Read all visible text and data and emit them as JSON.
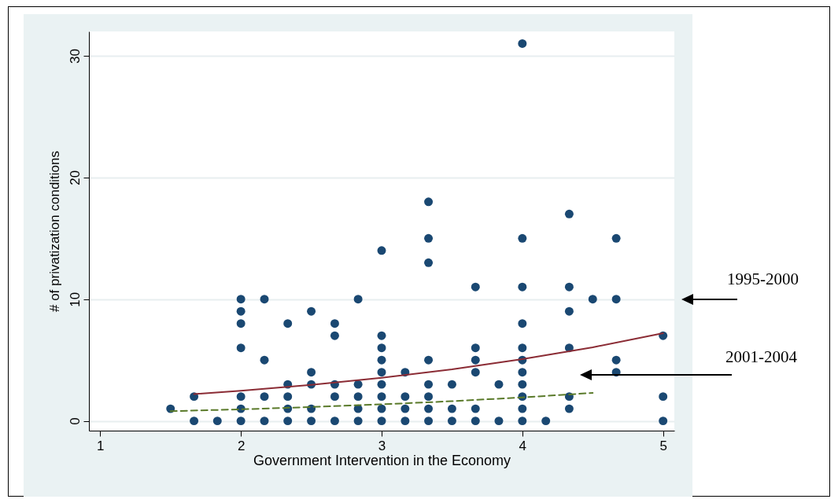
{
  "chart_data": {
    "type": "scatter",
    "xlabel": "Government Intervention in the Economy",
    "ylabel": "# of privatization conditions",
    "xlim": [
      0.92,
      5.08
    ],
    "ylim": [
      -0.8,
      32
    ],
    "xticks": [
      1,
      2,
      3,
      4,
      5
    ],
    "yticks": [
      0,
      10,
      20,
      30
    ],
    "grid": "y",
    "annotations": [
      "1995-2000",
      "2001-2004"
    ],
    "series": [
      {
        "marker": "circle",
        "color": "#1a4872",
        "x": [
          1.5,
          1.667,
          1.667,
          1.833,
          2,
          2,
          2,
          2,
          2,
          2,
          2,
          2.167,
          2.167,
          2.167,
          2.167,
          2.333,
          2.333,
          2.333,
          2.333,
          2.333,
          2.5,
          2.5,
          2.5,
          2.5,
          2.5,
          2.667,
          2.667,
          2.667,
          2.667,
          2.667,
          2.833,
          2.833,
          2.833,
          2.833,
          2.833,
          3,
          3,
          3,
          3,
          3,
          3,
          3,
          3,
          3,
          3.167,
          3.167,
          3.167,
          3.167,
          3.333,
          3.333,
          3.333,
          3.333,
          3.333,
          3.333,
          3.333,
          3.333,
          3.5,
          3.5,
          3.5,
          3.667,
          3.667,
          3.667,
          3.667,
          3.667,
          3.667,
          3.833,
          3.833,
          4,
          4,
          4,
          4,
          4,
          4,
          4,
          4,
          4,
          4,
          4,
          4.167,
          4.333,
          4.333,
          4.333,
          4.333,
          4.333,
          4.333,
          4.5,
          4.667,
          4.667,
          4.667,
          4.667,
          5,
          5,
          5
        ],
        "values": [
          1,
          2,
          0,
          0,
          10,
          9,
          8,
          6,
          2,
          1,
          0,
          10,
          5,
          2,
          0,
          8,
          3,
          2,
          1,
          0,
          9,
          4,
          3,
          1,
          0,
          8,
          7,
          3,
          2,
          0,
          10,
          3,
          2,
          1,
          0,
          14,
          7,
          6,
          5,
          4,
          3,
          2,
          1,
          0,
          4,
          2,
          1,
          0,
          18,
          15,
          13,
          5,
          3,
          2,
          1,
          0,
          3,
          1,
          0,
          11,
          6,
          5,
          4,
          1,
          0,
          3,
          0,
          31,
          15,
          11,
          8,
          6,
          5,
          4,
          3,
          2,
          1,
          0,
          0,
          17,
          11,
          9,
          6,
          2,
          1,
          10,
          15,
          10,
          5,
          4,
          7,
          2,
          0
        ]
      },
      {
        "type": "line",
        "color": "#8b2c35",
        "line_style": "solid",
        "x": [
          1.667,
          2,
          2.5,
          3,
          3.5,
          4,
          4.5,
          5
        ],
        "values": [
          2.2,
          2.48,
          2.96,
          3.54,
          4.24,
          5.07,
          6.05,
          7.2
        ]
      },
      {
        "type": "line",
        "color": "#5a7a2a",
        "line_style": "dashed",
        "x": [
          1.5,
          2,
          2.5,
          3,
          3.5,
          4,
          4.5
        ],
        "values": [
          0.8,
          0.95,
          1.14,
          1.36,
          1.62,
          1.93,
          2.3
        ]
      }
    ]
  }
}
